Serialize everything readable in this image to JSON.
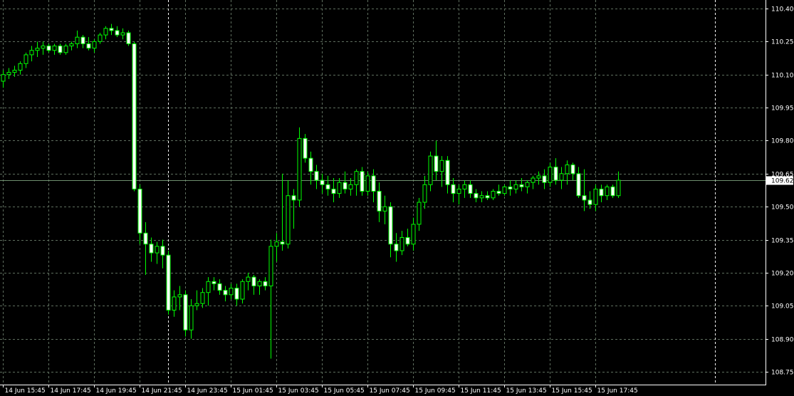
{
  "chart_data": {
    "type": "candlestick",
    "title": "",
    "xlabel": "",
    "ylabel": "",
    "ylim": [
      108.69,
      110.43
    ],
    "y_ticks": [
      "110.40",
      "110.25",
      "110.10",
      "109.95",
      "109.80",
      "109.65",
      "109.50",
      "109.35",
      "109.20",
      "109.05",
      "108.90",
      "108.75"
    ],
    "x_ticks": [
      "14 Jun 15:45",
      "14 Jun 17:45",
      "14 Jun 19:45",
      "14 Jun 21:45",
      "14 Jun 23:45",
      "15 Jun 01:45",
      "15 Jun 03:45",
      "15 Jun 05:45",
      "15 Jun 07:45",
      "15 Jun 09:45",
      "15 Jun 11:45",
      "15 Jun 13:45",
      "15 Jun 15:45",
      "15 Jun 17:45"
    ],
    "bar_interval_minutes": 15,
    "day_separators": [
      "14 Jun 23:00",
      "15 Jun 23:00"
    ],
    "current_price": "109.62",
    "grid": true,
    "colors": {
      "background": "#000000",
      "bull_body": "#000000",
      "bear_body": "#ffffff",
      "wick": "#00ff00",
      "grid": "#5f6f5f",
      "axis_text": "#ffffff",
      "separator": "#ffffff",
      "price_line": "#6f8f6f"
    },
    "candles": [
      [
        110.07,
        110.12,
        110.04,
        110.1
      ],
      [
        110.1,
        110.13,
        110.08,
        110.11
      ],
      [
        110.11,
        110.14,
        110.09,
        110.12
      ],
      [
        110.12,
        110.16,
        110.1,
        110.15
      ],
      [
        110.15,
        110.2,
        110.13,
        110.19
      ],
      [
        110.19,
        110.23,
        110.16,
        110.21
      ],
      [
        110.21,
        110.25,
        110.18,
        110.22
      ],
      [
        110.22,
        110.25,
        110.19,
        110.23
      ],
      [
        110.23,
        110.24,
        110.2,
        110.21
      ],
      [
        110.21,
        110.24,
        110.19,
        110.23
      ],
      [
        110.23,
        110.24,
        110.19,
        110.2
      ],
      [
        110.2,
        110.24,
        110.19,
        110.23
      ],
      [
        110.23,
        110.25,
        110.21,
        110.24
      ],
      [
        110.24,
        110.3,
        110.22,
        110.27
      ],
      [
        110.27,
        110.28,
        110.22,
        110.24
      ],
      [
        110.24,
        110.27,
        110.21,
        110.22
      ],
      [
        110.22,
        110.26,
        110.2,
        110.25
      ],
      [
        110.25,
        110.29,
        110.24,
        110.28
      ],
      [
        110.28,
        110.32,
        110.26,
        110.31
      ],
      [
        110.31,
        110.33,
        110.28,
        110.3
      ],
      [
        110.3,
        110.32,
        110.27,
        110.28
      ],
      [
        110.28,
        110.31,
        110.26,
        110.29
      ],
      [
        110.29,
        110.3,
        110.23,
        110.24
      ],
      [
        110.24,
        110.25,
        109.57,
        109.58
      ],
      [
        109.58,
        109.6,
        109.33,
        109.38
      ],
      [
        109.38,
        109.43,
        109.19,
        109.33
      ],
      [
        109.33,
        109.36,
        109.25,
        109.29
      ],
      [
        109.29,
        109.34,
        109.24,
        109.32
      ],
      [
        109.32,
        109.35,
        109.22,
        109.28
      ],
      [
        109.28,
        109.3,
        109.01,
        109.03
      ],
      [
        109.03,
        109.12,
        109.0,
        109.09
      ],
      [
        109.09,
        109.14,
        109.03,
        109.1
      ],
      [
        109.1,
        109.12,
        108.91,
        108.94
      ],
      [
        108.94,
        109.08,
        108.9,
        109.05
      ],
      [
        109.05,
        109.12,
        109.03,
        109.06
      ],
      [
        109.06,
        109.13,
        109.04,
        109.11
      ],
      [
        109.11,
        109.18,
        109.05,
        109.16
      ],
      [
        109.16,
        109.18,
        109.12,
        109.15
      ],
      [
        109.15,
        109.17,
        109.1,
        109.12
      ],
      [
        109.12,
        109.14,
        109.07,
        109.1
      ],
      [
        109.1,
        109.15,
        109.08,
        109.13
      ],
      [
        109.13,
        109.15,
        109.05,
        109.08
      ],
      [
        109.08,
        109.17,
        109.06,
        109.16
      ],
      [
        109.16,
        109.2,
        109.12,
        109.18
      ],
      [
        109.18,
        109.19,
        109.1,
        109.14
      ],
      [
        109.14,
        109.17,
        109.1,
        109.16
      ],
      [
        109.16,
        109.18,
        109.12,
        109.14
      ],
      [
        109.14,
        109.35,
        108.81,
        109.32
      ],
      [
        109.32,
        109.38,
        109.25,
        109.34
      ],
      [
        109.34,
        109.65,
        109.3,
        109.33
      ],
      [
        109.33,
        109.62,
        109.31,
        109.55
      ],
      [
        109.55,
        109.58,
        109.4,
        109.53
      ],
      [
        109.53,
        109.86,
        109.5,
        109.81
      ],
      [
        109.81,
        109.83,
        109.7,
        109.72
      ],
      [
        109.72,
        109.75,
        109.6,
        109.66
      ],
      [
        109.66,
        109.69,
        109.58,
        109.62
      ],
      [
        109.62,
        109.65,
        109.56,
        109.6
      ],
      [
        109.6,
        109.64,
        109.55,
        109.58
      ],
      [
        109.58,
        109.63,
        109.52,
        109.56
      ],
      [
        109.56,
        109.63,
        109.54,
        109.61
      ],
      [
        109.61,
        109.66,
        109.56,
        109.58
      ],
      [
        109.58,
        109.63,
        109.55,
        109.6
      ],
      [
        109.6,
        109.67,
        109.55,
        109.66
      ],
      [
        109.66,
        109.68,
        109.55,
        109.57
      ],
      [
        109.57,
        109.66,
        109.55,
        109.64
      ],
      [
        109.64,
        109.67,
        109.52,
        109.57
      ],
      [
        109.57,
        109.61,
        109.43,
        109.48
      ],
      [
        109.48,
        109.55,
        109.42,
        109.5
      ],
      [
        109.5,
        109.52,
        109.27,
        109.33
      ],
      [
        109.33,
        109.38,
        109.25,
        109.3
      ],
      [
        109.3,
        109.39,
        109.28,
        109.36
      ],
      [
        109.36,
        109.4,
        109.32,
        109.33
      ],
      [
        109.33,
        109.45,
        109.3,
        109.42
      ],
      [
        109.42,
        109.54,
        109.39,
        109.52
      ],
      [
        109.52,
        109.64,
        109.49,
        109.6
      ],
      [
        109.6,
        109.75,
        109.57,
        109.73
      ],
      [
        109.73,
        109.8,
        109.62,
        109.66
      ],
      [
        109.66,
        109.73,
        109.59,
        109.71
      ],
      [
        109.71,
        109.73,
        109.56,
        109.6
      ],
      [
        109.6,
        109.63,
        109.52,
        109.56
      ],
      [
        109.56,
        109.6,
        109.51,
        109.58
      ],
      [
        109.58,
        109.62,
        109.54,
        109.6
      ],
      [
        109.6,
        109.62,
        109.54,
        109.56
      ],
      [
        109.56,
        109.58,
        109.52,
        109.54
      ],
      [
        109.54,
        109.57,
        109.52,
        109.55
      ],
      [
        109.55,
        109.57,
        109.53,
        109.54
      ],
      [
        109.54,
        109.58,
        109.53,
        109.57
      ],
      [
        109.57,
        109.6,
        109.55,
        109.56
      ],
      [
        109.56,
        109.6,
        109.55,
        109.59
      ],
      [
        109.59,
        109.62,
        109.55,
        109.58
      ],
      [
        109.58,
        109.62,
        109.56,
        109.6
      ],
      [
        109.6,
        109.63,
        109.57,
        109.59
      ],
      [
        109.59,
        109.62,
        109.56,
        109.61
      ],
      [
        109.61,
        109.64,
        109.58,
        109.63
      ],
      [
        109.63,
        109.66,
        109.6,
        109.64
      ],
      [
        109.64,
        109.67,
        109.58,
        109.61
      ],
      [
        109.61,
        109.7,
        109.59,
        109.68
      ],
      [
        109.68,
        109.72,
        109.6,
        109.62
      ],
      [
        109.62,
        109.68,
        109.58,
        109.65
      ],
      [
        109.65,
        109.71,
        109.6,
        109.69
      ],
      [
        109.69,
        109.7,
        109.62,
        109.65
      ],
      [
        109.65,
        109.68,
        109.54,
        109.55
      ],
      [
        109.55,
        109.67,
        109.48,
        109.53
      ],
      [
        109.53,
        109.57,
        109.49,
        109.51
      ],
      [
        109.51,
        109.6,
        109.48,
        109.58
      ],
      [
        109.58,
        109.6,
        109.52,
        109.55
      ],
      [
        109.55,
        109.6,
        109.53,
        109.59
      ],
      [
        109.59,
        109.6,
        109.54,
        109.55
      ],
      [
        109.55,
        109.66,
        109.54,
        109.62
      ]
    ]
  }
}
